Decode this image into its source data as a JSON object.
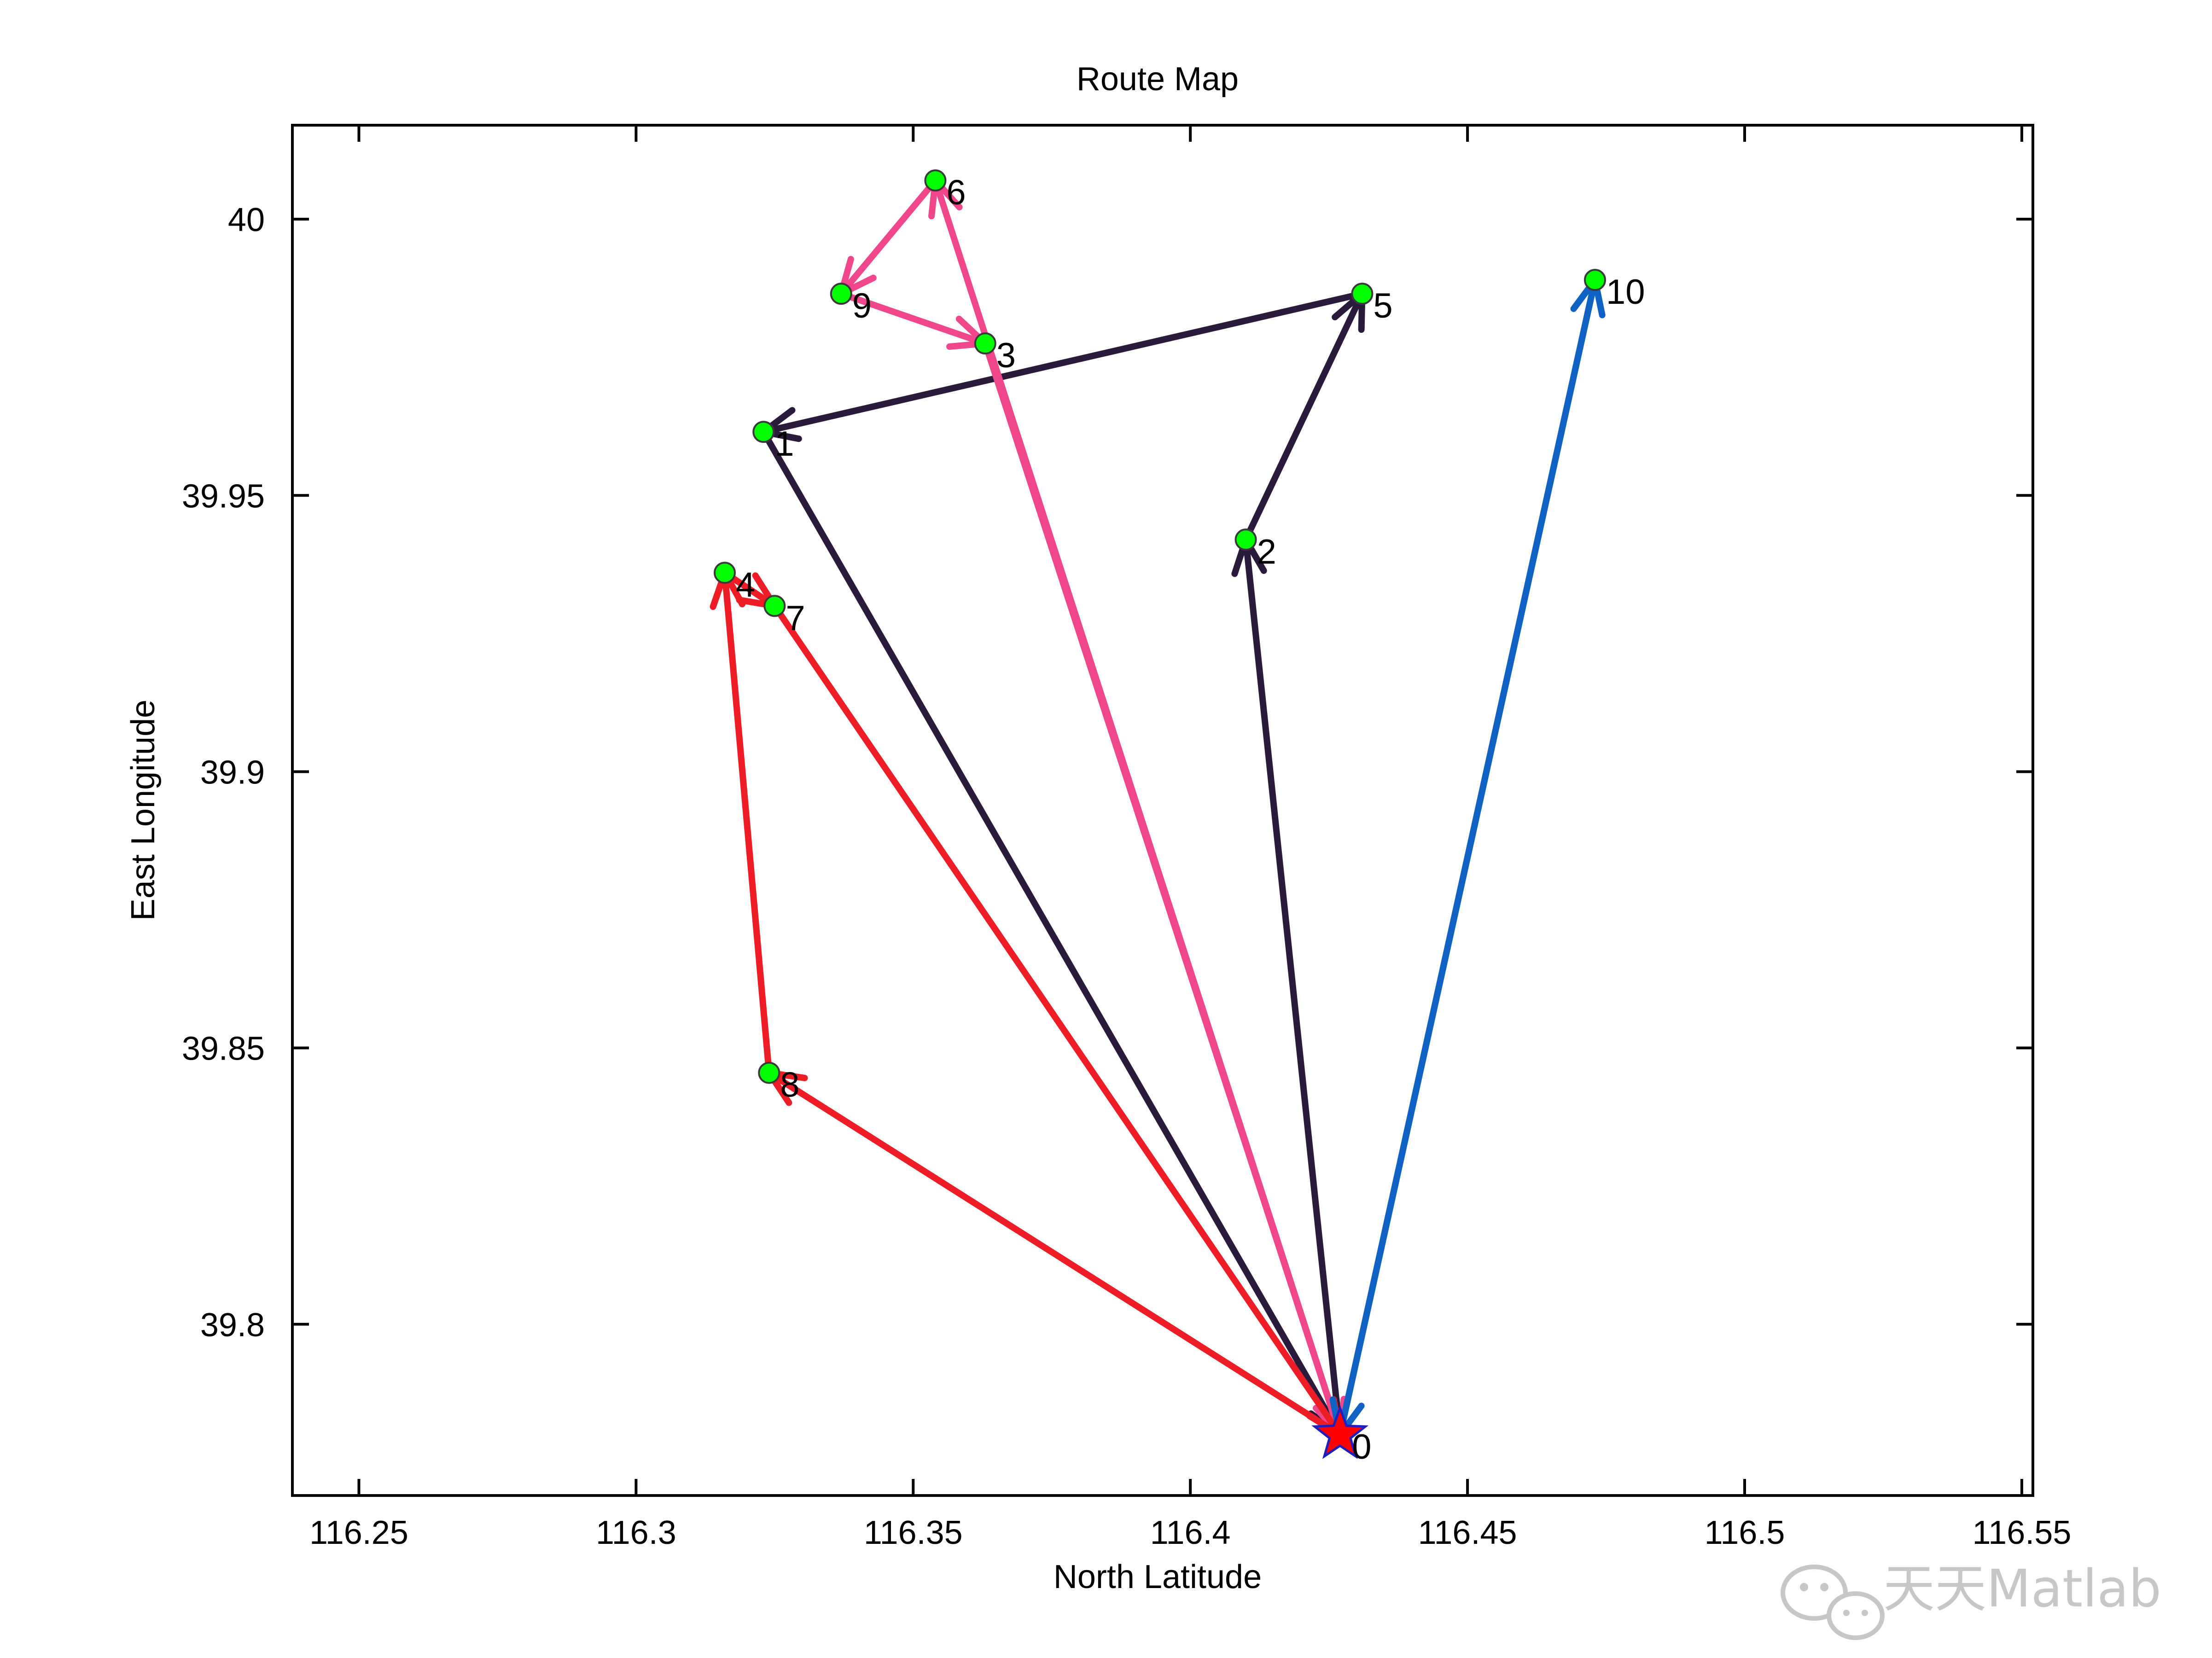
{
  "chart_data": {
    "type": "line",
    "title": "Route Map",
    "xlabel": "North Latitude",
    "ylabel": "East Longitude",
    "xlim": [
      116.238,
      116.552
    ],
    "ylim": [
      39.769,
      40.017
    ],
    "xticks": [
      "116.25",
      "116.3",
      "116.35",
      "116.4",
      "116.45",
      "116.5",
      "116.55"
    ],
    "xtick_values": [
      116.25,
      116.3,
      116.35,
      116.4,
      116.45,
      116.5,
      116.55
    ],
    "yticks": [
      "39.8",
      "39.85",
      "39.9",
      "39.95",
      "40"
    ],
    "ytick_values": [
      39.8,
      39.85,
      39.9,
      39.95,
      40.0
    ],
    "grid": false,
    "depot": {
      "label": "0",
      "x": 116.427,
      "y": 39.78,
      "marker": "star",
      "color": "#ff0000",
      "edge": "#1f1fbf"
    },
    "points": [
      {
        "label": "1",
        "x": 116.323,
        "y": 39.9615
      },
      {
        "label": "2",
        "x": 116.41,
        "y": 39.942
      },
      {
        "label": "3",
        "x": 116.363,
        "y": 39.9775
      },
      {
        "label": "4",
        "x": 116.316,
        "y": 39.936
      },
      {
        "label": "5",
        "x": 116.431,
        "y": 39.9865
      },
      {
        "label": "6",
        "x": 116.354,
        "y": 40.007
      },
      {
        "label": "7",
        "x": 116.325,
        "y": 39.93
      },
      {
        "label": "8",
        "x": 116.324,
        "y": 39.8455
      },
      {
        "label": "9",
        "x": 116.337,
        "y": 39.9865
      },
      {
        "label": "10",
        "x": 116.473,
        "y": 39.989
      }
    ],
    "point_color": "#00ff00",
    "routes": [
      {
        "color": "#2a1b3d",
        "stops": [
          "0",
          "2",
          "5",
          "1",
          "0"
        ]
      },
      {
        "color": "#f0468c",
        "stops": [
          "0",
          "6",
          "9",
          "3",
          "0"
        ]
      },
      {
        "color": "#ee1c24",
        "stops": [
          "0",
          "8",
          "4",
          "7",
          "0"
        ]
      },
      {
        "color": "#0f62c4",
        "stops": [
          "0",
          "10",
          "0"
        ]
      }
    ]
  },
  "watermark": {
    "text": "天天Matlab",
    "icon": "wechat-icon"
  }
}
